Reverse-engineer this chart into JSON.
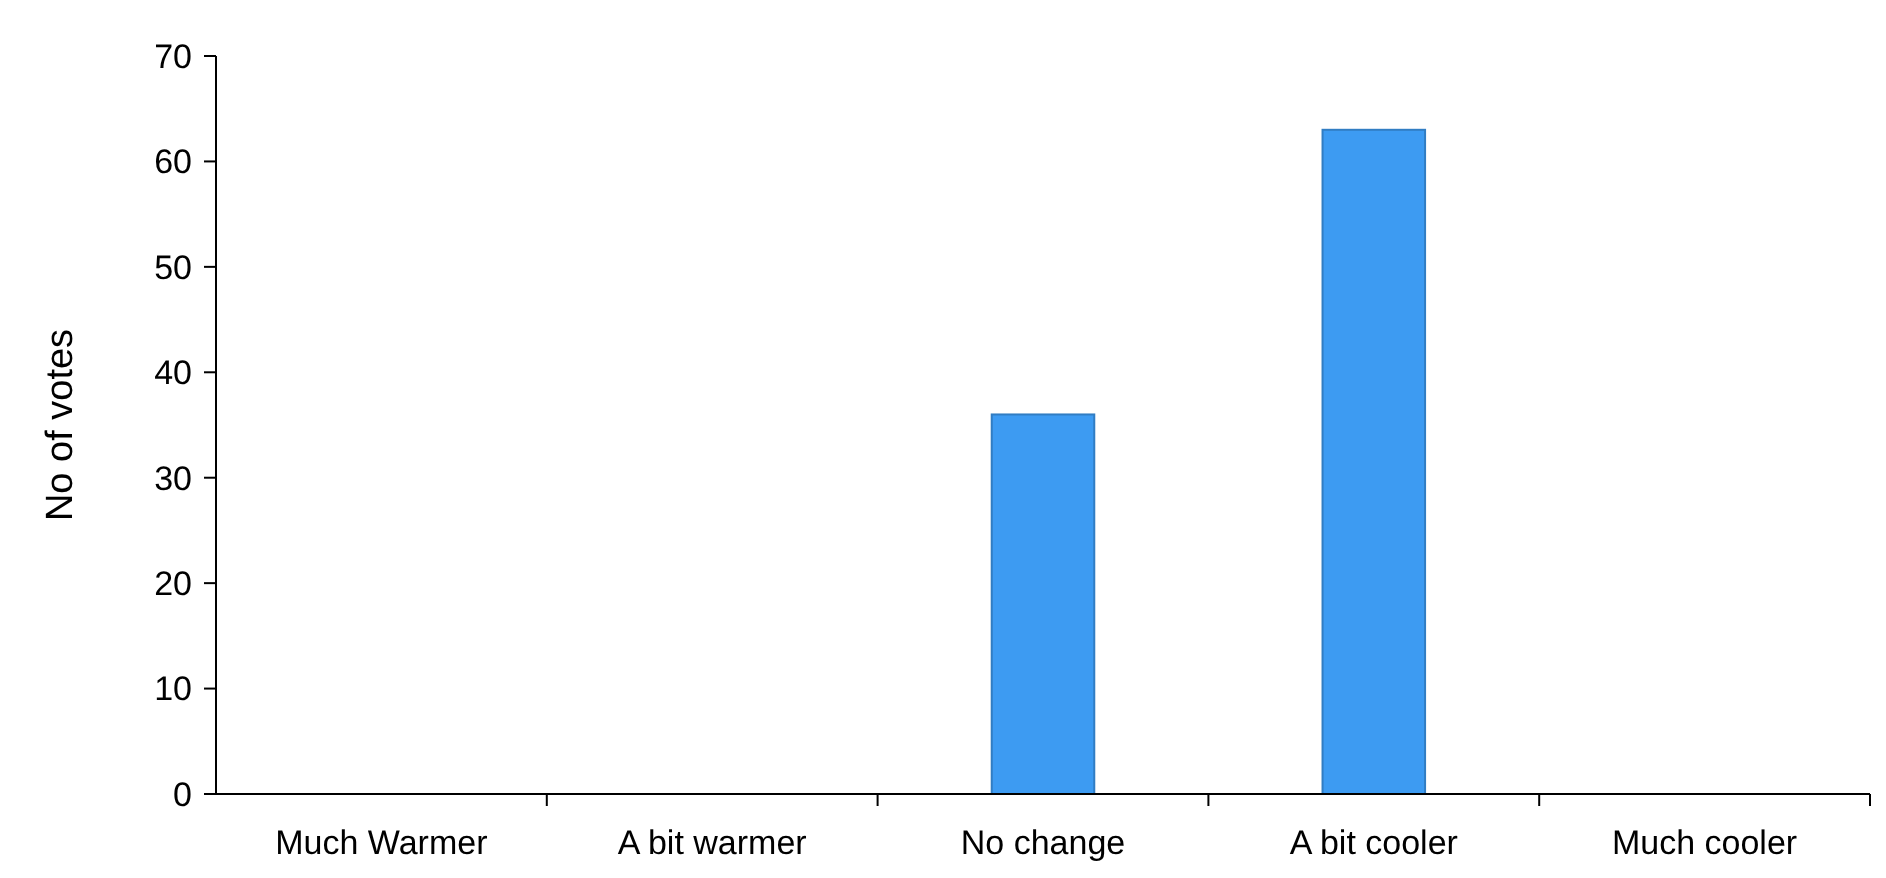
{
  "chart_data": {
    "type": "bar",
    "ylabel": "No of votes",
    "categories": [
      "Much Warmer",
      "A bit warmer",
      "No change",
      "A bit cooler",
      "Much cooler"
    ],
    "values": [
      0,
      0,
      36,
      63,
      0
    ],
    "color": "#3d9bf2",
    "ylim": [
      0,
      70
    ],
    "yticks": [
      0,
      10,
      20,
      30,
      40,
      50,
      60,
      70
    ],
    "grid": false
  }
}
